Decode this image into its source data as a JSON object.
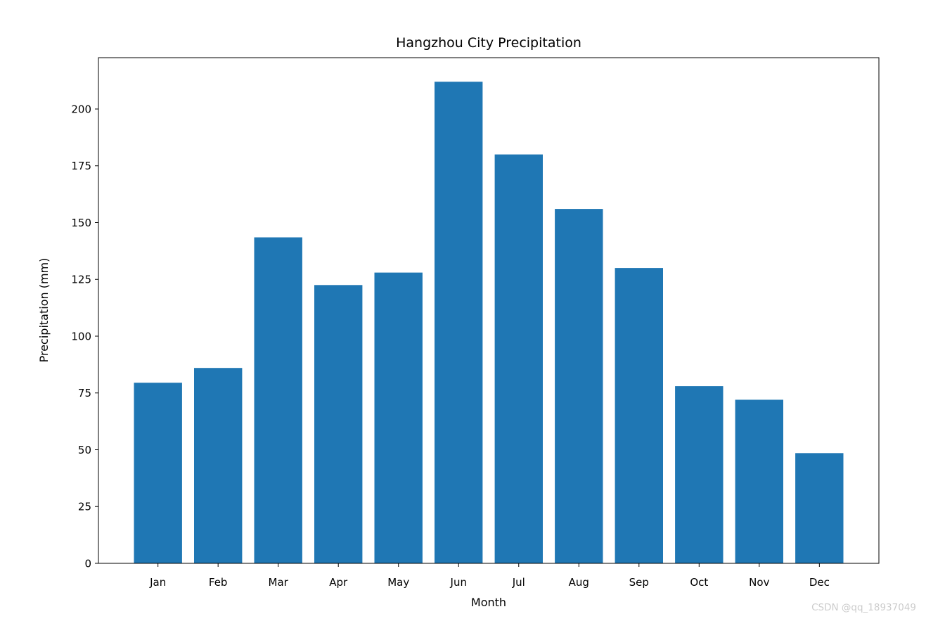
{
  "chart_data": {
    "type": "bar",
    "title": "Hangzhou City Precipitation",
    "xlabel": "Month",
    "ylabel": "Precipitation (mm)",
    "categories": [
      "Jan",
      "Feb",
      "Mar",
      "Apr",
      "May",
      "Jun",
      "Jul",
      "Aug",
      "Sep",
      "Oct",
      "Nov",
      "Dec"
    ],
    "values": [
      79.5,
      86,
      143.5,
      122.5,
      128,
      212,
      180,
      156,
      130,
      78,
      72,
      48.5
    ],
    "ylim": [
      0,
      222.6
    ],
    "y_ticks": [
      0,
      25,
      50,
      75,
      100,
      125,
      150,
      175,
      200
    ],
    "bar_color": "#1f77b4",
    "grid": false,
    "legend_position": "none"
  },
  "watermark": {
    "text": "CSDN @qq_18937049",
    "color": "#cccccc"
  }
}
